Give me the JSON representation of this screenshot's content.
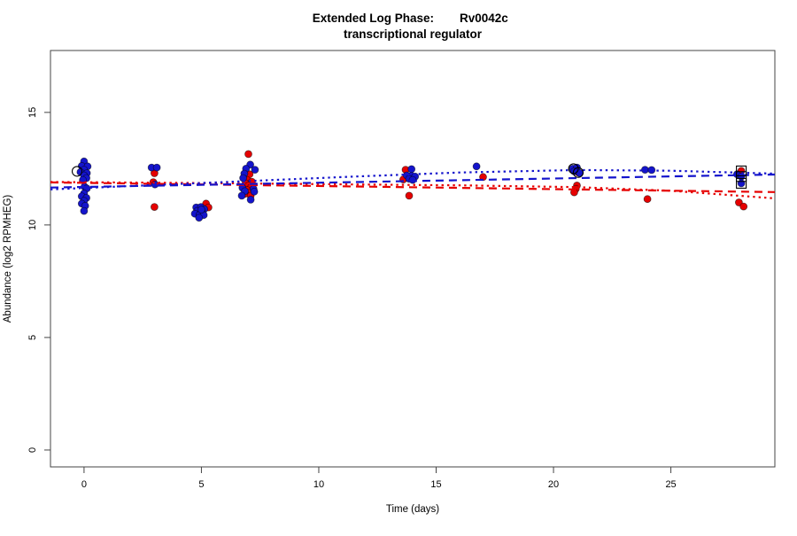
{
  "figure": {
    "title_prefix": "Extended Log Phase:",
    "title_gene": "Rv0042c",
    "title_line2": "transcriptional regulator",
    "xlabel": "Time  (days)",
    "ylabel": "Abundance  (log2 RPMHEG)"
  },
  "chart_data": {
    "type": "scatter",
    "title": "Extended Log Phase: Rv0042c",
    "subtitle": "transcriptional regulator",
    "xlabel": "Time (days)",
    "ylabel": "Abundance (log2 RPMHEG)",
    "xlim": [
      -1.43,
      29.43
    ],
    "ylim": [
      -0.75,
      17.75
    ],
    "xticks": [
      0,
      5,
      10,
      15,
      20,
      25
    ],
    "yticks": [
      0,
      5,
      10,
      15
    ],
    "grid": false,
    "legend": "none",
    "colors": {
      "red_series": "#e60000",
      "blue_series": "#1414cc",
      "flag_marker": "#000000",
      "axis": "#444444"
    },
    "series": [
      {
        "name": "red",
        "color": "#e60000",
        "points": [
          [
            3.0,
            12.3
          ],
          [
            2.95,
            11.9
          ],
          [
            3.0,
            10.8
          ],
          [
            5.2,
            10.95
          ],
          [
            5.3,
            10.78
          ],
          [
            7.0,
            13.15
          ],
          [
            7.05,
            12.25
          ],
          [
            6.95,
            12.0
          ],
          [
            7.15,
            11.92
          ],
          [
            6.88,
            11.85
          ],
          [
            7.0,
            11.75
          ],
          [
            7.12,
            11.68
          ],
          [
            6.95,
            11.55
          ],
          [
            7.05,
            11.45
          ],
          [
            6.85,
            11.38
          ],
          [
            7.1,
            11.3
          ],
          [
            13.7,
            12.45
          ],
          [
            13.6,
            12.02
          ],
          [
            13.85,
            11.3
          ],
          [
            17.0,
            12.13
          ],
          [
            21.05,
            12.33
          ],
          [
            21.0,
            11.75
          ],
          [
            20.95,
            11.6
          ],
          [
            20.88,
            11.45
          ],
          [
            24.0,
            11.15
          ],
          [
            28.0,
            12.4
          ],
          [
            27.9,
            11.0
          ],
          [
            28.1,
            10.82
          ]
        ]
      },
      {
        "name": "blue",
        "color": "#1414cc",
        "points": [
          [
            0.0,
            12.82
          ],
          [
            -0.1,
            12.62
          ],
          [
            0.15,
            12.6
          ],
          [
            0.0,
            12.45
          ],
          [
            -0.15,
            12.35
          ],
          [
            0.12,
            12.3
          ],
          [
            0.0,
            12.2
          ],
          [
            0.1,
            12.08
          ],
          [
            -0.05,
            12.0
          ],
          [
            0.02,
            11.7
          ],
          [
            0.12,
            11.62
          ],
          [
            0.0,
            11.4
          ],
          [
            -0.1,
            11.27
          ],
          [
            0.1,
            11.2
          ],
          [
            0.0,
            11.07
          ],
          [
            -0.1,
            10.95
          ],
          [
            0.05,
            10.85
          ],
          [
            0.0,
            10.62
          ],
          [
            2.88,
            12.55
          ],
          [
            3.1,
            12.55
          ],
          [
            3.02,
            11.8
          ],
          [
            4.78,
            10.78
          ],
          [
            4.98,
            10.8
          ],
          [
            5.12,
            10.7
          ],
          [
            4.82,
            10.62
          ],
          [
            5.02,
            10.57
          ],
          [
            4.72,
            10.5
          ],
          [
            4.92,
            10.45
          ],
          [
            5.1,
            10.44
          ],
          [
            4.9,
            10.32
          ],
          [
            5.0,
            10.68
          ],
          [
            7.08,
            12.68
          ],
          [
            6.9,
            12.5
          ],
          [
            7.28,
            12.45
          ],
          [
            6.83,
            12.28
          ],
          [
            6.78,
            12.08
          ],
          [
            6.75,
            11.65
          ],
          [
            7.22,
            11.6
          ],
          [
            6.85,
            11.5
          ],
          [
            7.25,
            11.48
          ],
          [
            6.72,
            11.3
          ],
          [
            7.1,
            11.12
          ],
          [
            13.95,
            12.48
          ],
          [
            13.75,
            12.2
          ],
          [
            13.95,
            12.18
          ],
          [
            14.1,
            12.15
          ],
          [
            13.85,
            12.05
          ],
          [
            14.0,
            12.0
          ],
          [
            16.72,
            12.6
          ],
          [
            20.82,
            12.5
          ],
          [
            21.0,
            12.55
          ],
          [
            20.88,
            12.38
          ],
          [
            21.12,
            12.3
          ],
          [
            23.9,
            12.45
          ],
          [
            24.18,
            12.44
          ],
          [
            27.82,
            12.25
          ],
          [
            28.0,
            12.15
          ],
          [
            28.0,
            11.85
          ]
        ]
      }
    ],
    "flagged_points": {
      "open_circles": [
        [
          -0.3,
          12.38
        ],
        [
          20.85,
          12.5
        ],
        [
          21.05,
          12.33
        ]
      ],
      "open_squares": [
        [
          28.0,
          12.4
        ],
        [
          28.0,
          12.15
        ],
        [
          28.0,
          11.85
        ]
      ]
    },
    "trend_lines": [
      {
        "series": "red",
        "style": "longdash",
        "points": [
          [
            -1.43,
            11.89
          ],
          [
            29.43,
            11.46
          ]
        ]
      },
      {
        "series": "red",
        "style": "dotted",
        "points": [
          [
            -1.43,
            11.91
          ],
          [
            5,
            11.86
          ],
          [
            11.5,
            11.8
          ],
          [
            16,
            11.76
          ],
          [
            21,
            11.68
          ],
          [
            25,
            11.52
          ],
          [
            29.43,
            11.18
          ]
        ]
      },
      {
        "series": "blue",
        "style": "longdash",
        "points": [
          [
            -1.43,
            11.66
          ],
          [
            29.43,
            12.24
          ]
        ]
      },
      {
        "series": "blue",
        "style": "dotted",
        "points": [
          [
            -1.43,
            11.58
          ],
          [
            5,
            11.86
          ],
          [
            11.5,
            12.15
          ],
          [
            16,
            12.33
          ],
          [
            21,
            12.44
          ],
          [
            25,
            12.41
          ],
          [
            29.43,
            12.28
          ]
        ]
      }
    ]
  }
}
